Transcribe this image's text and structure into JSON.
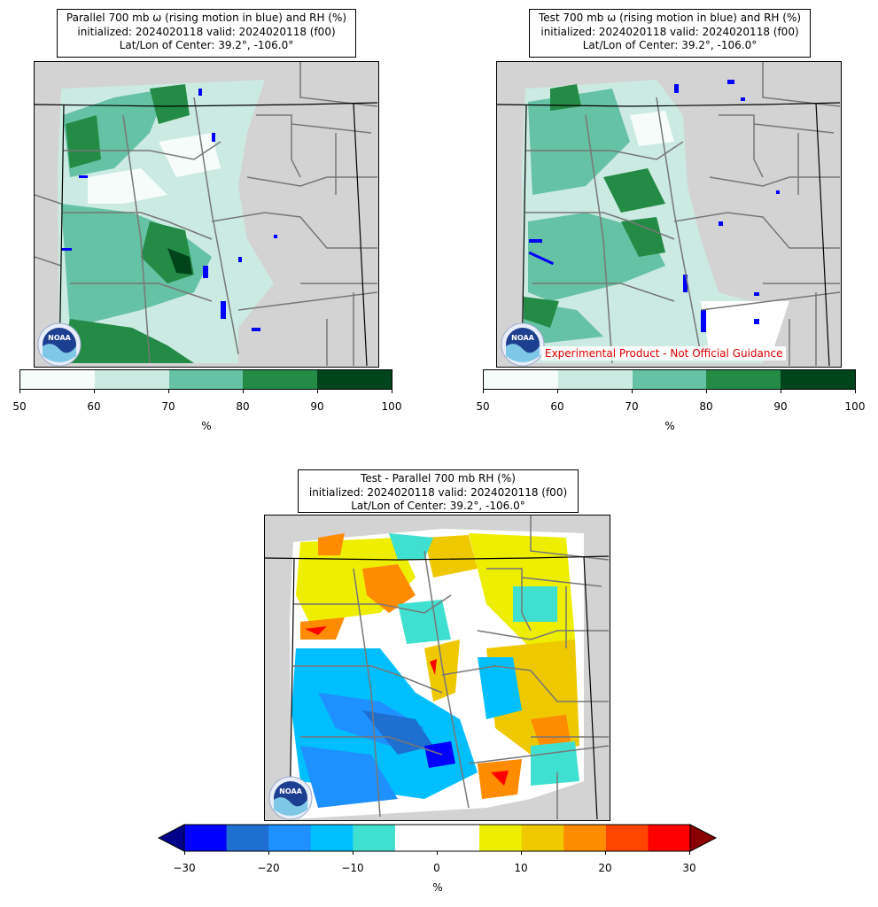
{
  "panels": {
    "parallel": {
      "title_line1": "Parallel 700 mb ω (rising motion in blue) and RH (%)",
      "title_line2": "initialized: 2024020118 valid: 2024020118 (f00)",
      "title_line3": "Lat/Lon of Center: 39.2°, -106.0°"
    },
    "test": {
      "title_line1": "Test 700 mb ω (rising motion in blue) and RH (%)",
      "title_line2": "initialized: 2024020118 valid: 2024020118 (f00)",
      "title_line3": "Lat/Lon of Center: 39.2°, -106.0°",
      "disclaimer": "Experimental Product - Not Official Guidance"
    },
    "diff": {
      "title_line1": "Test - Parallel 700 mb RH (%)",
      "title_line2": "initialized: 2024020118 valid: 2024020118 (f00)",
      "title_line3": "Lat/Lon of Center: 39.2°, -106.0°"
    }
  },
  "logo_text": "NOAA",
  "rh_colorbar": {
    "ticks": [
      "50",
      "60",
      "70",
      "80",
      "90",
      "100"
    ],
    "unit": "%",
    "colors": [
      "#f5fcfa",
      "#cbeae2",
      "#66c2a4",
      "#238b45",
      "#00441b"
    ]
  },
  "diff_colorbar": {
    "ticks": [
      "−30",
      "−20",
      "−10",
      "0",
      "10",
      "20",
      "30"
    ],
    "unit": "%",
    "colors": [
      "#0000ff",
      "#1e6fd0",
      "#1e90ff",
      "#00bfff",
      "#40e0d0",
      "#ffffff",
      "#ffffff",
      "#eeee00",
      "#eec900",
      "#ff8c00",
      "#ff4500",
      "#ff0000"
    ],
    "under_color": "#00008b",
    "over_color": "#8b0000"
  },
  "colors": {
    "land": "#d3d3d3",
    "rising_motion": "#0000ff",
    "disclaimer_text": "#e00000"
  }
}
